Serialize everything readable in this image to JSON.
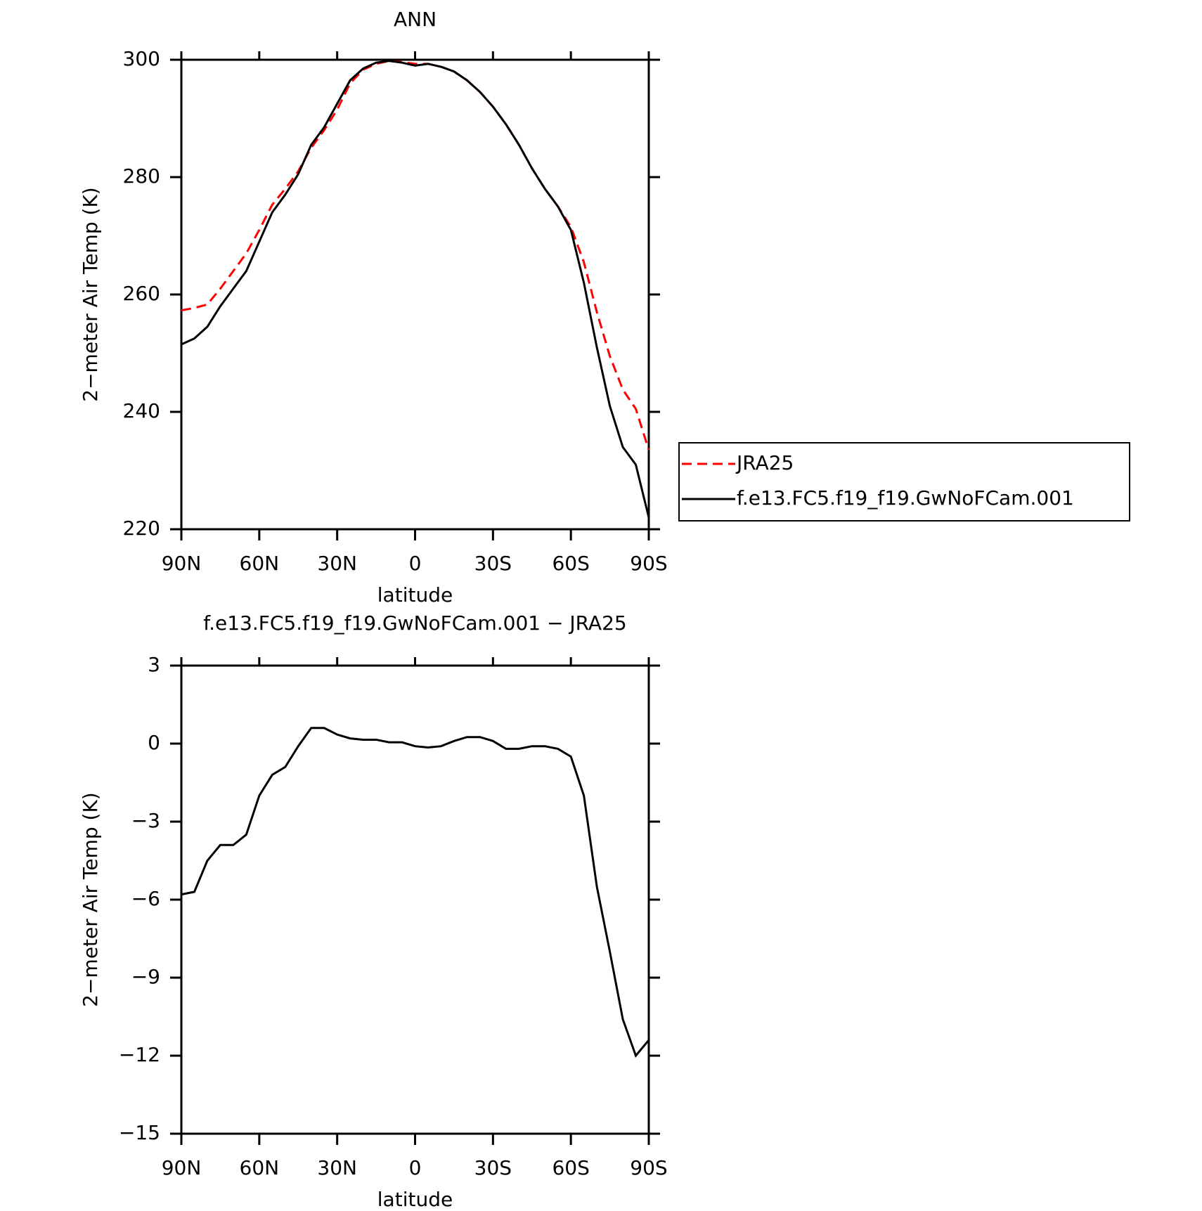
{
  "chart_data": [
    {
      "type": "line",
      "title": "ANN",
      "xlabel": "latitude",
      "ylabel": "2−meter Air Temp (K)",
      "x": [
        90,
        85,
        80,
        75,
        70,
        65,
        60,
        55,
        50,
        45,
        40,
        35,
        30,
        25,
        20,
        15,
        10,
        5,
        0,
        -5,
        -10,
        -15,
        -20,
        -25,
        -30,
        -35,
        -40,
        -45,
        -50,
        -55,
        -60,
        -65,
        -70,
        -75,
        -80,
        -85,
        -90
      ],
      "xlim": [
        90,
        -90
      ],
      "xticks": [
        {
          "value": 90,
          "label": "90N"
        },
        {
          "value": 60,
          "label": "60N"
        },
        {
          "value": 30,
          "label": "30N"
        },
        0,
        {
          "value": -30,
          "label": "30S"
        },
        {
          "value": -60,
          "label": "60S"
        },
        {
          "value": -90,
          "label": "90S"
        }
      ],
      "ylim": [
        220,
        300
      ],
      "yticks": [
        220,
        240,
        260,
        280,
        300
      ],
      "legend": "right",
      "series": [
        {
          "name": "JRA25",
          "color": "#ff0000",
          "dash": true,
          "values": [
            257.3,
            257.7,
            258.3,
            261,
            264,
            267,
            271,
            275.3,
            278,
            281,
            285,
            288,
            291.5,
            296,
            298.3,
            299.3,
            299.8,
            299.6,
            299.3,
            299.3,
            298.8,
            298,
            296.5,
            294.5,
            292,
            289,
            285.5,
            281.5,
            278,
            275,
            271.5,
            265.5,
            257,
            249.5,
            243.8,
            240.5,
            233.5
          ]
        },
        {
          "name": "f.e13.FC5.f19_f19.GwNoFCam.001",
          "color": "#000000",
          "dash": false,
          "values": [
            251.5,
            252.5,
            254.5,
            258,
            261,
            264,
            269,
            274,
            277,
            280.5,
            285.5,
            288.5,
            292.5,
            296.5,
            298.5,
            299.5,
            299.8,
            299.5,
            299,
            299.3,
            298.8,
            298,
            296.5,
            294.5,
            292,
            289,
            285.5,
            281.5,
            278,
            275,
            271,
            262,
            251,
            241,
            234,
            231,
            222
          ]
        }
      ]
    },
    {
      "type": "line",
      "title": "f.e13.FC5.f19_f19.GwNoFCam.001 − JRA25",
      "xlabel": "latitude",
      "ylabel": "2−meter Air Temp (K)",
      "x": [
        90,
        85,
        80,
        75,
        70,
        65,
        60,
        55,
        50,
        45,
        40,
        35,
        30,
        25,
        20,
        15,
        10,
        5,
        0,
        -5,
        -10,
        -15,
        -20,
        -25,
        -30,
        -35,
        -40,
        -45,
        -50,
        -55,
        -60,
        -65,
        -70,
        -75,
        -80,
        -85,
        -90
      ],
      "xlim": [
        90,
        -90
      ],
      "xticks": [
        {
          "value": 90,
          "label": "90N"
        },
        {
          "value": 60,
          "label": "60N"
        },
        {
          "value": 30,
          "label": "30N"
        },
        0,
        {
          "value": -30,
          "label": "30S"
        },
        {
          "value": -60,
          "label": "60S"
        },
        {
          "value": -90,
          "label": "90S"
        }
      ],
      "ylim": [
        -15,
        3
      ],
      "yticks": [
        3,
        0,
        {
          "value": -3,
          "label": "−3"
        },
        {
          "value": -6,
          "label": "−6"
        },
        {
          "value": -9,
          "label": "−9"
        },
        {
          "value": -12,
          "label": "−12"
        },
        {
          "value": -15,
          "label": "−15"
        }
      ],
      "series": [
        {
          "color": "#000000",
          "dash": false,
          "values": [
            -5.8,
            -5.7,
            -4.5,
            -3.9,
            -3.9,
            -3.5,
            -2,
            -1.2,
            -0.9,
            -0.1,
            0.6,
            0.6,
            0.35,
            0.2,
            0.15,
            0.15,
            0.05,
            0.05,
            -0.1,
            -0.15,
            -0.1,
            0.1,
            0.25,
            0.25,
            0.1,
            -0.2,
            -0.2,
            -0.1,
            -0.1,
            -0.2,
            -0.5,
            -2,
            -5.5,
            -8,
            -10.6,
            -12,
            -11.4
          ]
        }
      ]
    }
  ]
}
